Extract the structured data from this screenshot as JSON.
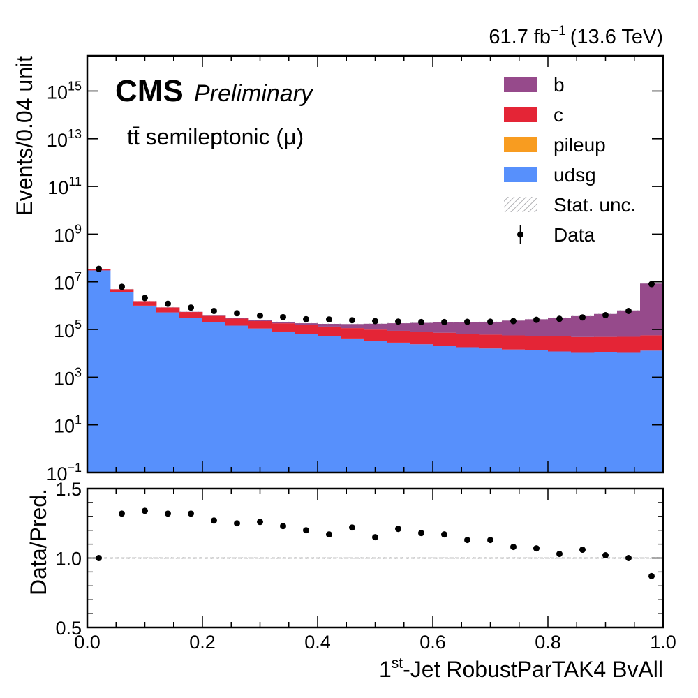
{
  "header": {
    "lumi": "61.7 fb",
    "lumi_exp": "−1",
    "energy": "(13.6 TeV)",
    "experiment": "CMS",
    "status": "Preliminary",
    "process": "tt̄ semileptonic (μ)"
  },
  "legend": {
    "position": "top-right",
    "entries": [
      {
        "label": "b",
        "color": "#964a8b",
        "kind": "fill"
      },
      {
        "label": "c",
        "color": "#e42536",
        "kind": "fill"
      },
      {
        "label": "pileup",
        "color": "#f89c20",
        "kind": "fill"
      },
      {
        "label": "udsg",
        "color": "#5790fc",
        "kind": "fill"
      },
      {
        "label": "Stat. unc.",
        "color": "#9c9ca1",
        "kind": "hatch"
      },
      {
        "label": "Data",
        "color": "#000000",
        "kind": "marker"
      }
    ]
  },
  "chart_data": [
    {
      "type": "area",
      "name": "main",
      "stacked_histogram": true,
      "y_scale": "log",
      "ylabel": "Events/0.04 unit",
      "xlim": [
        0.0,
        1.0
      ],
      "ylim": [
        0.1,
        3e+16
      ],
      "y_ticks": [
        {
          "base": "10",
          "exp": "−1",
          "value": 0.1
        },
        {
          "base": "10",
          "exp": "1",
          "value": 10
        },
        {
          "base": "10",
          "exp": "3",
          "value": 1000
        },
        {
          "base": "10",
          "exp": "5",
          "value": 100000
        },
        {
          "base": "10",
          "exp": "7",
          "value": 10000000
        },
        {
          "base": "10",
          "exp": "9",
          "value": 1000000000
        },
        {
          "base": "10",
          "exp": "11",
          "value": 100000000000
        },
        {
          "base": "10",
          "exp": "13",
          "value": 10000000000000
        },
        {
          "base": "10",
          "exp": "15",
          "value": 1000000000000000
        }
      ],
      "bin_edges": [
        0.0,
        0.04,
        0.08,
        0.12,
        0.16,
        0.2,
        0.24,
        0.28,
        0.32,
        0.36,
        0.4,
        0.44,
        0.48,
        0.52,
        0.56,
        0.6,
        0.64,
        0.68,
        0.72,
        0.76,
        0.8,
        0.84,
        0.88,
        0.92,
        0.96,
        1.0
      ],
      "series": [
        {
          "name": "udsg",
          "color": "#5790fc",
          "values": [
            30000000,
            3800000,
            1000000,
            520000,
            310000,
            200000,
            145000,
            110000,
            82000,
            65000,
            52000,
            42000,
            34000,
            28000,
            24000,
            21000,
            18000,
            16000,
            14500,
            13500,
            12000,
            10500,
            11000,
            10500,
            13000
          ]
        },
        {
          "name": "pileup",
          "color": "#f89c20",
          "values": [
            2000,
            300,
            100,
            60,
            40,
            30,
            25,
            20,
            18,
            15,
            13,
            11,
            10,
            9,
            9,
            8,
            8,
            7,
            7,
            7,
            7,
            6,
            7,
            7,
            9
          ]
        },
        {
          "name": "c",
          "color": "#e42536",
          "values": [
            3500000,
            1100000,
            550000,
            320000,
            230000,
            170000,
            140000,
            115000,
            100000,
            88000,
            80000,
            72000,
            65000,
            60000,
            56000,
            52000,
            48000,
            45000,
            42000,
            41000,
            40000,
            38000,
            38000,
            39000,
            44000
          ]
        },
        {
          "name": "b",
          "color": "#964a8b",
          "values": [
            0,
            0,
            0,
            8000,
            10000,
            12000,
            15000,
            20000,
            25000,
            30000,
            40000,
            55000,
            75000,
            95000,
            110000,
            125000,
            135000,
            150000,
            180000,
            215000,
            260000,
            315000,
            400000,
            580000,
            8400000
          ]
        }
      ],
      "data": {
        "name": "Data",
        "x": [
          0.02,
          0.06,
          0.1,
          0.14,
          0.18,
          0.22,
          0.26,
          0.3,
          0.34,
          0.38,
          0.42,
          0.46,
          0.5,
          0.54,
          0.58,
          0.62,
          0.66,
          0.7,
          0.74,
          0.78,
          0.82,
          0.86,
          0.9,
          0.94,
          0.98
        ],
        "y": [
          35000000,
          6200000,
          2100000,
          1200000,
          830000,
          600000,
          480000,
          380000,
          330000,
          270000,
          265000,
          245000,
          225000,
          215000,
          205000,
          205000,
          210000,
          212000,
          225000,
          255000,
          280000,
          320000,
          400000,
          600000,
          8000000
        ]
      }
    },
    {
      "type": "scatter",
      "name": "ratio",
      "ylabel": "Data/Pred.",
      "xlabel": "1st-Jet RobustParTAK4 BvAll",
      "xlim": [
        0.0,
        1.0
      ],
      "ylim": [
        0.5,
        1.5
      ],
      "x_ticks": [
        "0.0",
        "0.2",
        "0.4",
        "0.6",
        "0.8",
        "1.0"
      ],
      "y_ticks": [
        "0.5",
        "1.0",
        "1.5"
      ],
      "reference_line": 1.0,
      "x": [
        0.02,
        0.06,
        0.1,
        0.14,
        0.18,
        0.22,
        0.26,
        0.3,
        0.34,
        0.38,
        0.42,
        0.46,
        0.5,
        0.54,
        0.58,
        0.62,
        0.66,
        0.7,
        0.74,
        0.78,
        0.82,
        0.86,
        0.9,
        0.94,
        0.98
      ],
      "y": [
        1.0,
        1.32,
        1.34,
        1.32,
        1.32,
        1.27,
        1.25,
        1.26,
        1.23,
        1.2,
        1.17,
        1.22,
        1.15,
        1.21,
        1.18,
        1.17,
        1.13,
        1.13,
        1.08,
        1.07,
        1.03,
        1.06,
        1.02,
        1.0,
        0.87
      ]
    }
  ],
  "axis_labels": {
    "main_y": "Events/0.04 unit",
    "ratio_y": "Data/Pred.",
    "x_pre": "1",
    "x_sup": "st",
    "x_post": "-Jet RobustParTAK4 BvAll"
  }
}
